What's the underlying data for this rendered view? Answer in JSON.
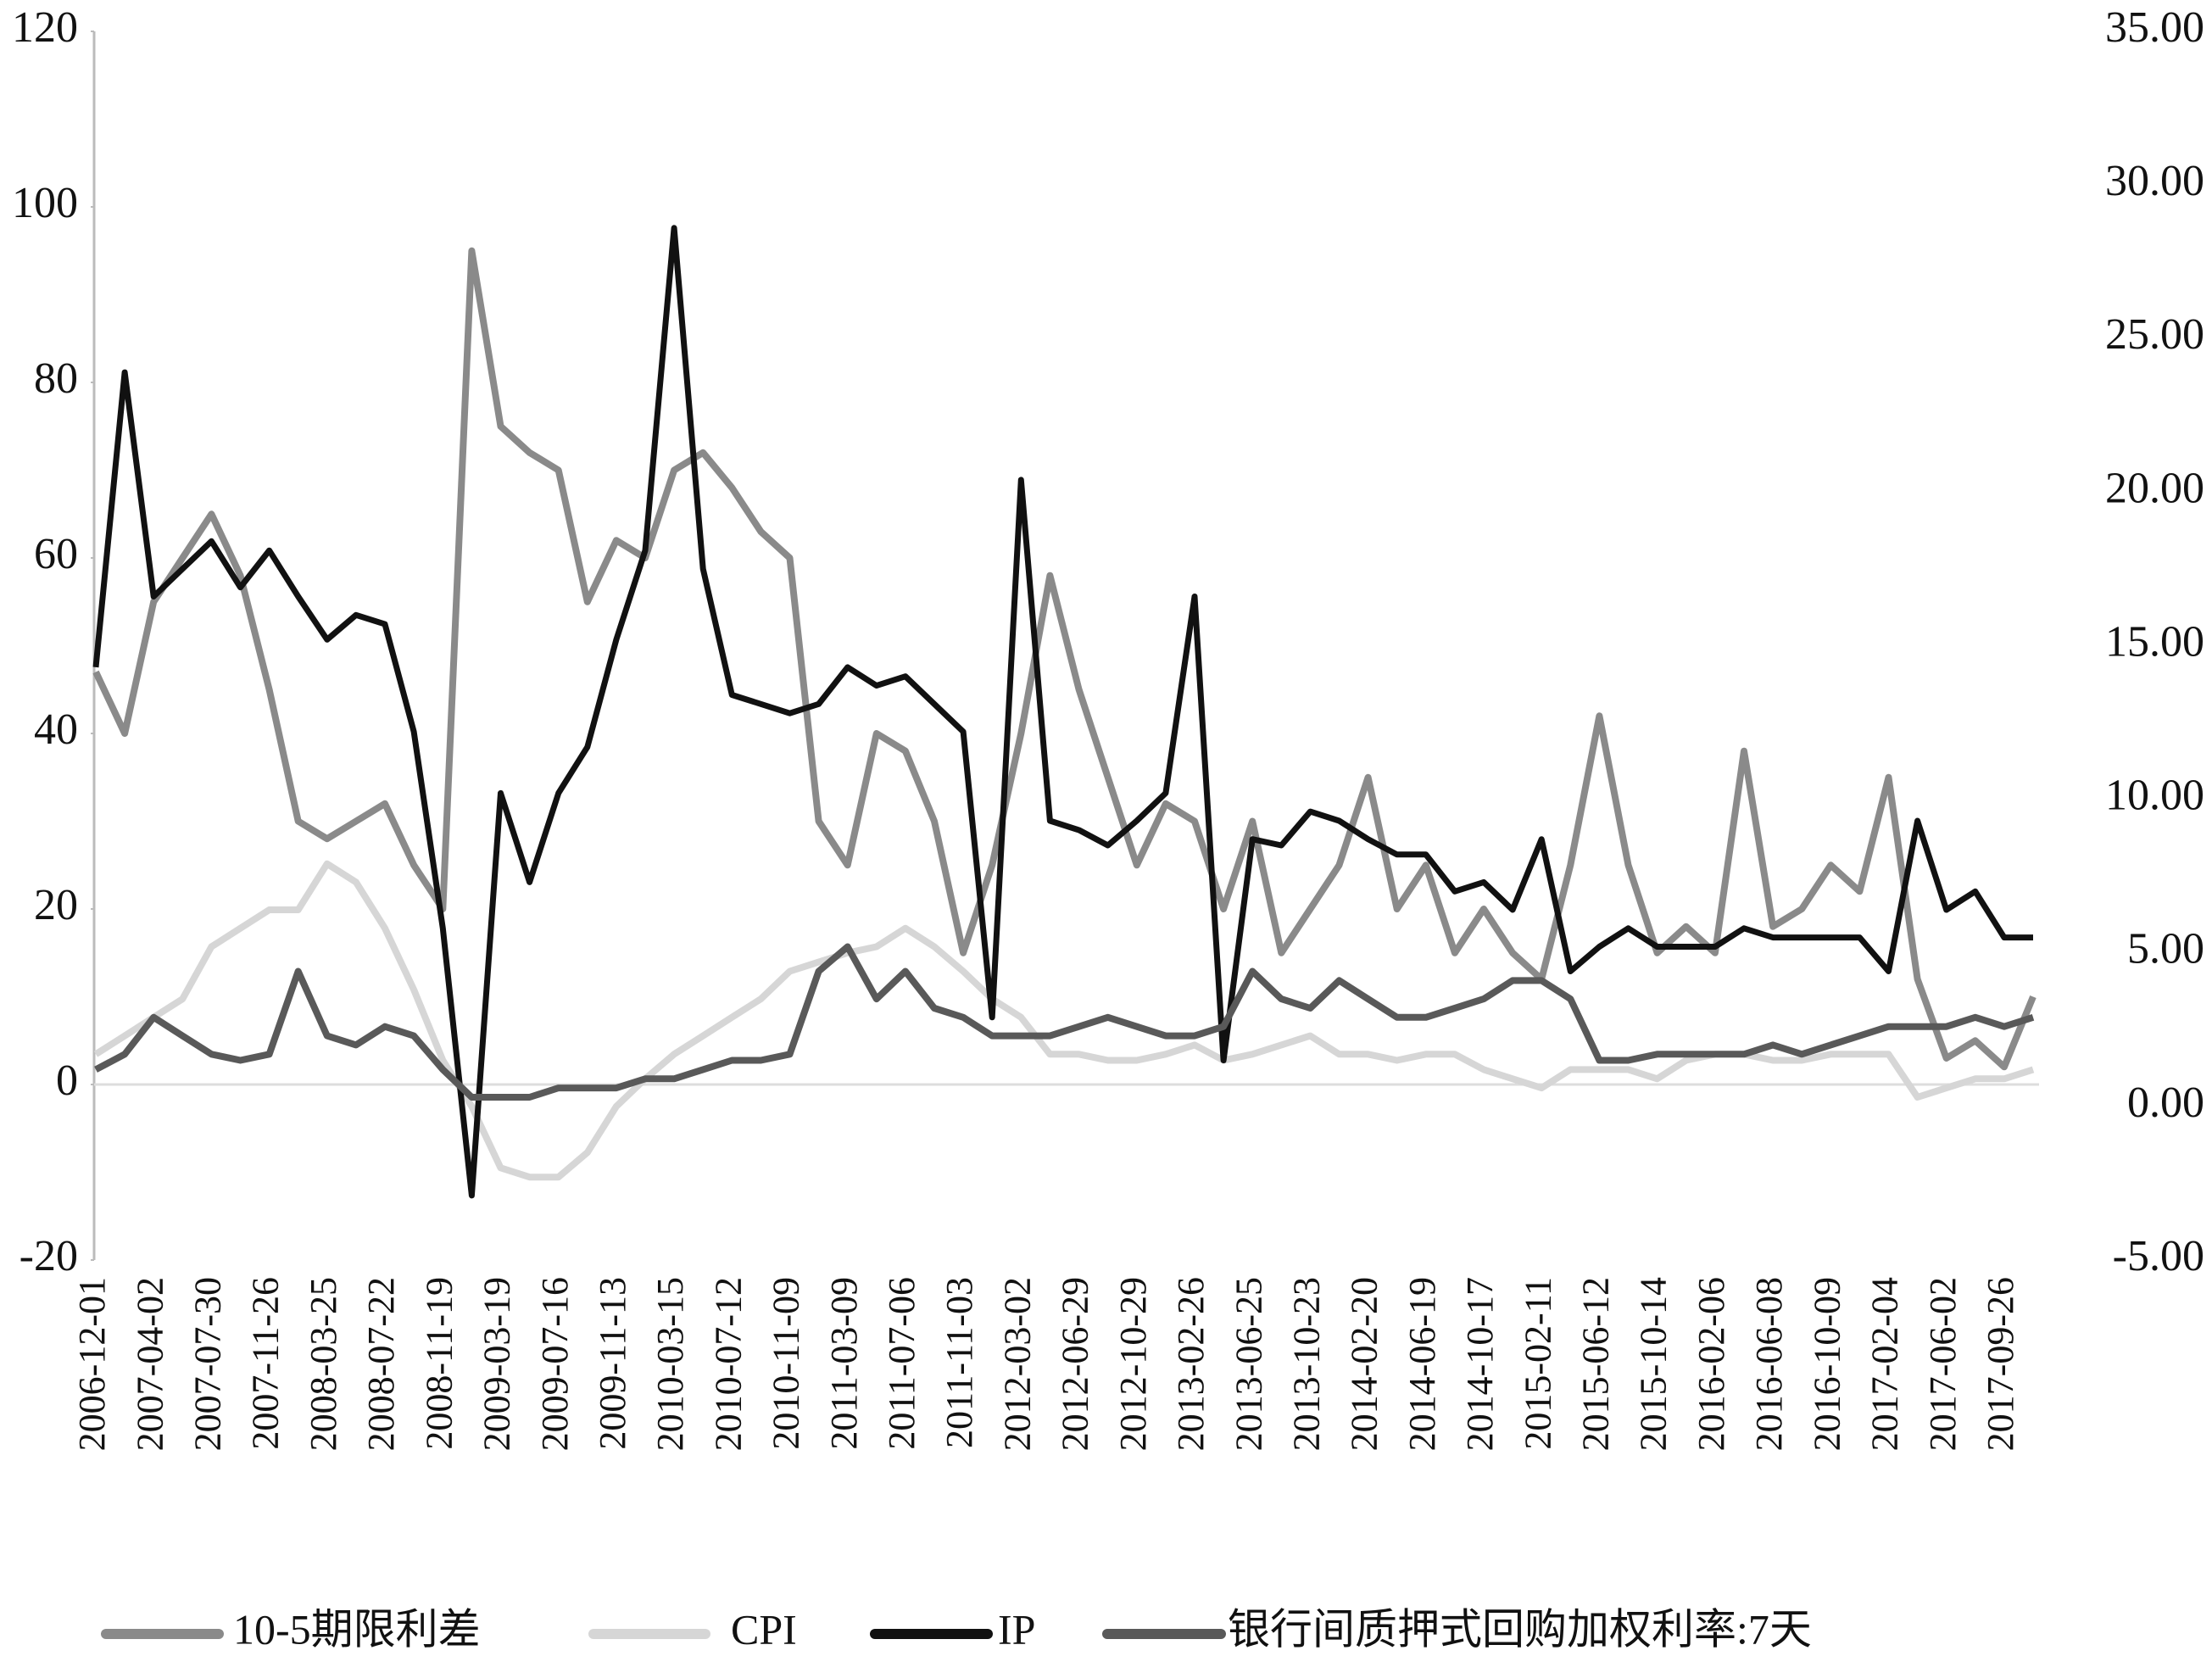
{
  "chart_data": {
    "type": "line",
    "categories": [
      "2006-12-01",
      null,
      "2007-04-02",
      null,
      "2007-07-30",
      null,
      "2007-11-26",
      null,
      "2008-03-25",
      null,
      "2008-07-22",
      null,
      "2008-11-19",
      null,
      "2009-03-19",
      null,
      "2009-07-16",
      null,
      "2009-11-13",
      null,
      "2010-03-15",
      null,
      "2010-07-12",
      null,
      "2010-11-09",
      null,
      "2011-03-09",
      null,
      "2011-07-06",
      null,
      "2011-11-03",
      null,
      "2012-03-02",
      null,
      "2012-06-29",
      null,
      "2012-10-29",
      null,
      "2013-02-26",
      null,
      "2013-06-25",
      null,
      "2013-10-23",
      null,
      "2014-02-20",
      null,
      "2014-06-19",
      null,
      "2014-10-17",
      null,
      "2015-02-11",
      null,
      "2015-06-12",
      null,
      "2015-10-14",
      null,
      "2016-02-06",
      null,
      "2016-06-08",
      null,
      "2016-10-09",
      null,
      "2017-02-04",
      null,
      "2017-06-02",
      null,
      "2017-09-26",
      null
    ],
    "series": [
      {
        "name": "10-5期限利差",
        "color": "#8a8a8a",
        "axis": "y",
        "values": [
          47,
          40,
          55,
          60,
          65,
          58,
          45,
          30,
          28,
          30,
          32,
          25,
          20,
          95,
          75,
          72,
          70,
          55,
          62,
          60,
          70,
          72,
          68,
          63,
          60,
          30,
          25,
          40,
          38,
          30,
          15,
          25,
          40,
          58,
          45,
          35,
          25,
          32,
          30,
          20,
          30,
          15,
          20,
          25,
          35,
          20,
          25,
          15,
          20,
          15,
          12,
          25,
          42,
          25,
          15,
          18,
          15,
          38,
          18,
          20,
          25,
          22,
          35,
          12,
          3,
          5,
          2,
          10
        ]
      },
      {
        "name": "CPI",
        "color": "#d6d6d6",
        "axis": "y2",
        "values": [
          1.7,
          2.3,
          2.9,
          3.5,
          5.2,
          5.8,
          6.4,
          6.4,
          7.9,
          7.3,
          5.8,
          3.8,
          1.5,
          0,
          -2.0,
          -2.3,
          -2.3,
          -1.5,
          0,
          0.9,
          1.7,
          2.3,
          2.9,
          3.5,
          4.4,
          4.7,
          5.0,
          5.2,
          5.8,
          5.2,
          4.4,
          3.5,
          2.9,
          1.7,
          1.7,
          1.5,
          1.5,
          1.7,
          2.0,
          1.5,
          1.7,
          2.0,
          2.3,
          1.7,
          1.7,
          1.5,
          1.7,
          1.7,
          1.2,
          0.9,
          0.6,
          1.2,
          1.2,
          1.2,
          0.9,
          1.5,
          1.7,
          1.7,
          1.5,
          1.5,
          1.7,
          1.7,
          1.7,
          0.3,
          0.6,
          0.9,
          0.9,
          1.2
        ]
      },
      {
        "name": "IP",
        "color": "#111111",
        "axis": "y2",
        "values": [
          14.3,
          23.9,
          16.6,
          17.5,
          18.4,
          16.9,
          18.1,
          16.6,
          15.2,
          16.0,
          15.7,
          12.2,
          5.8,
          -2.9,
          10.2,
          7.3,
          10.2,
          11.7,
          15.2,
          18.1,
          28.6,
          17.5,
          13.4,
          13.1,
          12.8,
          13.1,
          14.3,
          13.7,
          14.0,
          13.1,
          12.2,
          2.9,
          20.4,
          9.3,
          9.0,
          8.5,
          9.3,
          10.2,
          16.6,
          1.5,
          8.7,
          8.5,
          9.6,
          9.3,
          8.7,
          8.2,
          8.2,
          7.0,
          7.3,
          6.4,
          8.7,
          4.4,
          5.2,
          5.8,
          5.2,
          5.2,
          5.2,
          5.8,
          5.5,
          5.5,
          5.5,
          5.5,
          4.4,
          9.3,
          6.4,
          7.0,
          5.5,
          5.5
        ]
      },
      {
        "name": "银行间质押式回购加权利率:7天",
        "color": "#595959",
        "axis": "y2",
        "values": [
          1.2,
          1.7,
          2.9,
          2.3,
          1.7,
          1.5,
          1.7,
          4.4,
          2.3,
          2.0,
          2.6,
          2.3,
          1.2,
          0.3,
          0.3,
          0.3,
          0.6,
          0.6,
          0.6,
          0.9,
          0.9,
          1.2,
          1.5,
          1.5,
          1.7,
          4.4,
          5.2,
          3.5,
          4.4,
          3.2,
          2.9,
          2.3,
          2.3,
          2.3,
          2.6,
          2.9,
          2.6,
          2.3,
          2.3,
          2.6,
          4.4,
          3.5,
          3.2,
          4.1,
          3.5,
          2.9,
          2.9,
          3.2,
          3.5,
          4.1,
          4.1,
          3.5,
          1.5,
          1.5,
          1.7,
          1.7,
          1.7,
          1.7,
          2.0,
          1.7,
          2.0,
          2.3,
          2.6,
          2.6,
          2.6,
          2.9,
          2.6,
          2.9
        ]
      }
    ],
    "ylim": [
      -20,
      120
    ],
    "yticks": [
      -20,
      0,
      20,
      40,
      60,
      80,
      100,
      120
    ],
    "y2lim": [
      -5,
      35
    ],
    "y2ticks": [
      {
        "value": -5,
        "label": "-5.00"
      },
      {
        "value": 0,
        "label": "0.00"
      },
      {
        "value": 5,
        "label": "5.00"
      },
      {
        "value": 10,
        "label": "10.00"
      },
      {
        "value": 15,
        "label": "15.00"
      },
      {
        "value": 20,
        "label": "20.00"
      },
      {
        "value": 25,
        "label": "25.00"
      },
      {
        "value": 30,
        "label": "30.00"
      },
      {
        "value": 35,
        "label": "35.00"
      }
    ],
    "grid": false,
    "legend": "bottom"
  }
}
